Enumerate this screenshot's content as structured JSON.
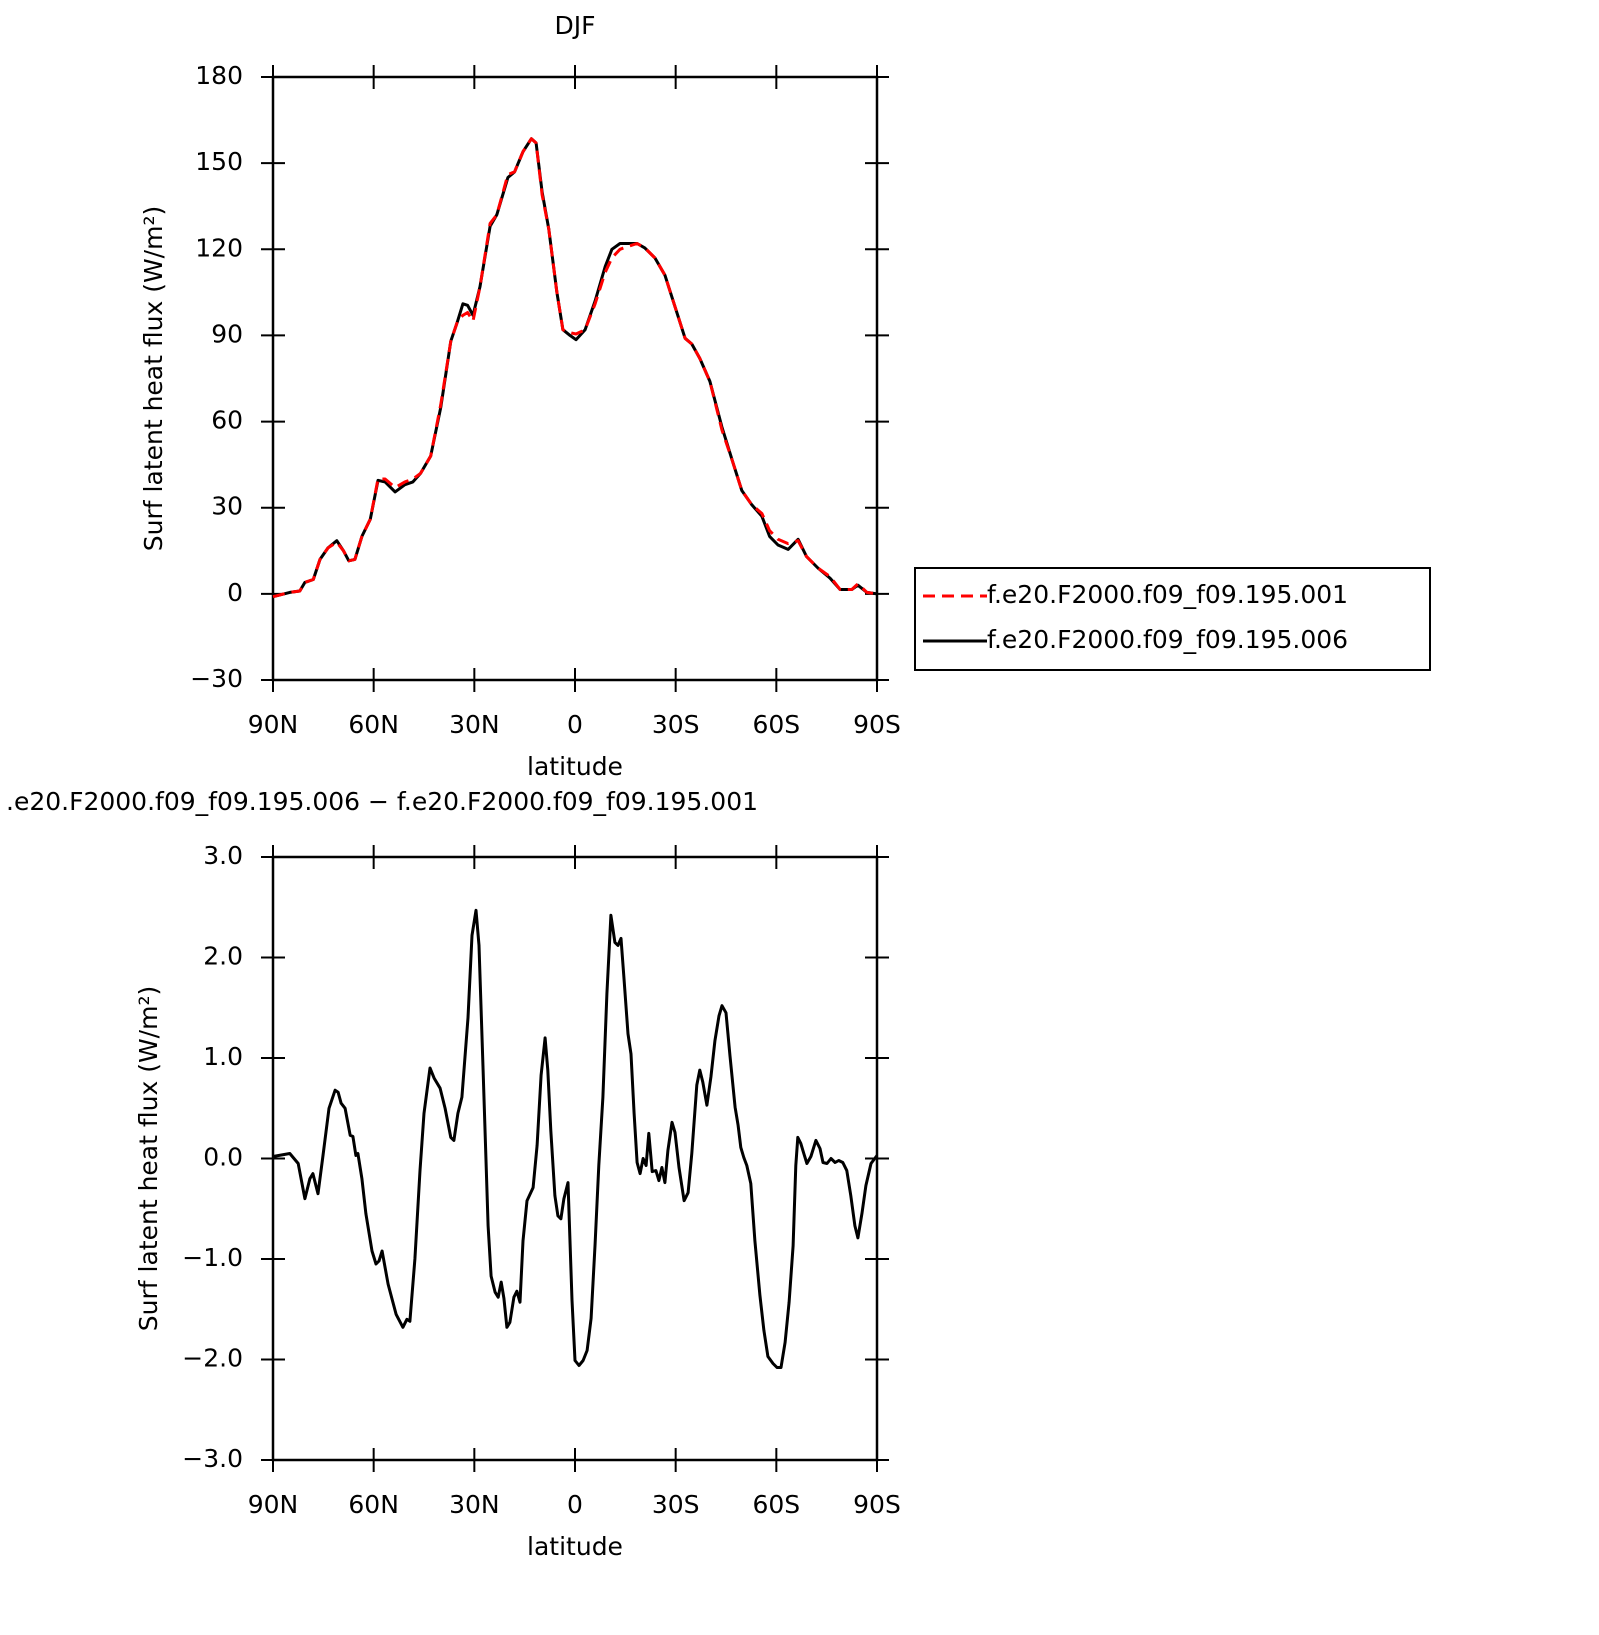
{
  "chart_data": [
    {
      "type": "line",
      "title": "DJF",
      "xlabel": "latitude",
      "ylabel": "Surf latent heat flux (W/m²)",
      "x": [
        90,
        85,
        82,
        80.5,
        78,
        76,
        73.6,
        71,
        69,
        67.4,
        65.6,
        63.5,
        61,
        58.7,
        56.6,
        53.6,
        50.7,
        48.3,
        46,
        43,
        40,
        37,
        35,
        33.4,
        32,
        30.4,
        28.3,
        25.3,
        23.3,
        20,
        18,
        15.5,
        13,
        11.6,
        9.8,
        7.8,
        5.4,
        3.6,
        1.5,
        -0.3,
        -3,
        -6,
        -9,
        -11,
        -13.4,
        -15.8,
        -18.5,
        -20.8,
        -23.8,
        -26.8,
        -29.8,
        -32.8,
        -34.8,
        -37.2,
        -40.2,
        -43.8,
        -47,
        -49.7,
        -52.7,
        -55.7,
        -58,
        -60.5,
        -63.5,
        -66.5,
        -69,
        -72.4,
        -76,
        -79,
        -82.5,
        -84.3,
        -87,
        -90
      ],
      "series": [
        {
          "name": "f.e20.F2000.f09_f09.195.006",
          "color": "#000000",
          "line_style": "solid",
          "values": [
            -1,
            0.5,
            1,
            4,
            5,
            12,
            16,
            18.5,
            15,
            11.5,
            12,
            20,
            26,
            39.5,
            39,
            35.5,
            38,
            39,
            42,
            48,
            65,
            88,
            95,
            101,
            100.5,
            97,
            107,
            128,
            132,
            145,
            147,
            154,
            158.5,
            157,
            140,
            127,
            105,
            92,
            90,
            88.5,
            92,
            102,
            114,
            120,
            122,
            122,
            122,
            120.5,
            117,
            111,
            100,
            89,
            87,
            82,
            74,
            58,
            46,
            36,
            31,
            27,
            20,
            17,
            15.5,
            19,
            13,
            9,
            5.5,
            1.5,
            1.5,
            3,
            0.5,
            0
          ]
        },
        {
          "name": "f.e20.F2000.f09_f09.195.001",
          "color": "#ff0000",
          "line_style": "dashed",
          "values": [
            -1,
            0.5,
            1,
            4,
            5,
            12,
            16,
            18,
            15,
            11.5,
            12,
            20,
            26,
            40,
            40,
            37,
            39,
            40,
            42,
            48,
            66,
            88,
            95,
            97,
            98,
            95,
            107,
            129,
            132,
            146,
            147,
            154,
            158.5,
            157,
            139,
            127,
            105,
            92,
            91,
            90.5,
            92,
            101,
            112,
            117,
            120,
            121,
            122,
            120.5,
            117,
            111,
            100,
            89,
            87,
            82,
            74,
            57,
            46,
            36,
            31,
            28,
            22,
            19,
            17.5,
            18.5,
            13,
            9,
            6,
            1.5,
            1.5,
            3.5,
            0.5,
            0
          ]
        }
      ],
      "legend_order": [
        1,
        0
      ],
      "legend": "right",
      "xlim": [
        90,
        -90
      ],
      "xticks": [
        {
          "value": 90,
          "label": "90N"
        },
        {
          "value": 60,
          "label": "60N"
        },
        {
          "value": 30,
          "label": "30N"
        },
        0,
        {
          "value": -30,
          "label": "30S"
        },
        {
          "value": -60,
          "label": "60S"
        },
        {
          "value": -90,
          "label": "90S"
        }
      ],
      "ylim": [
        -30,
        180
      ],
      "yticks": [
        {
          "value": -30,
          "label": "−30"
        },
        0,
        30,
        60,
        90,
        120,
        150,
        180
      ]
    },
    {
      "type": "line",
      "title": ".e20.F2000.f09_f09.195.006 − f.e20.F2000.f09_f09.195.001",
      "xlabel": "latitude",
      "ylabel": "Surf latent heat flux (W/m²)",
      "x": [
        90,
        85,
        82.5,
        80.5,
        79,
        78.1,
        76.6,
        75.1,
        73.3,
        71.5,
        70.6,
        69.7,
        68.5,
        67,
        66.2,
        65.3,
        64.7,
        63.5,
        62.3,
        60.5,
        59.3,
        58.4,
        57.5,
        55.7,
        54.5,
        53.3,
        51.3,
        50.1,
        49.2,
        47.7,
        46.2,
        45,
        43.2,
        42,
        40.2,
        38.7,
        37,
        36.1,
        34.9,
        33.7,
        31.9,
        30.7,
        29.5,
        28.6,
        27.4,
        25.9,
        25,
        23.8,
        22.9,
        22,
        21.2,
        20.3,
        19.4,
        18.2,
        17.3,
        16.4,
        15.5,
        14.3,
        12.5,
        11.3,
        10.1,
        8.9,
        8.1,
        7.2,
        6,
        5.1,
        4.2,
        3.3,
        2.1,
        0.9,
        0,
        -1.2,
        -2.4,
        -3.6,
        -4.8,
        -6,
        -7.1,
        -8.3,
        -9.5,
        -10.7,
        -11.9,
        -12.8,
        -13.7,
        -14.6,
        -15.8,
        -16.7,
        -17.6,
        -18.5,
        -19.4,
        -20.3,
        -21.2,
        -22,
        -23,
        -24.1,
        -25,
        -25.9,
        -26.8,
        -27.7,
        -28.9,
        -29.8,
        -31,
        -32.5,
        -33.7,
        -34.8,
        -36.3,
        -37.2,
        -38.1,
        -39.3,
        -40.5,
        -41.7,
        -42.9,
        -43.8,
        -45,
        -46.2,
        -47.7,
        -48.6,
        -49.4,
        -50.3,
        -51.2,
        -52.4,
        -53.6,
        -55.1,
        -56.3,
        -57.5,
        -59,
        -60.2,
        -61.4,
        -62.6,
        -63.8,
        -65,
        -65.8,
        -66.4,
        -67.3,
        -68.2,
        -69.1,
        -70.3,
        -71.8,
        -73,
        -73.9,
        -75.1,
        -76.3,
        -77.5,
        -78.6,
        -79.8,
        -81,
        -82.2,
        -83.4,
        -84.3,
        -85.5,
        -86.7,
        -88.2,
        -90
      ],
      "values": [
        0.02,
        0.05,
        -0.05,
        -0.4,
        -0.2,
        -0.15,
        -0.35,
        0.03,
        0.5,
        0.68,
        0.66,
        0.55,
        0.5,
        0.23,
        0.22,
        0.03,
        0.05,
        -0.2,
        -0.55,
        -0.92,
        -1.05,
        -1.02,
        -0.92,
        -1.25,
        -1.4,
        -1.55,
        -1.68,
        -1.6,
        -1.62,
        -1.0,
        -0.12,
        0.45,
        0.9,
        0.8,
        0.7,
        0.5,
        0.21,
        0.18,
        0.45,
        0.61,
        1.4,
        2.22,
        2.47,
        2.12,
        0.88,
        -0.67,
        -1.17,
        -1.33,
        -1.38,
        -1.23,
        -1.39,
        -1.68,
        -1.63,
        -1.38,
        -1.32,
        -1.43,
        -0.82,
        -0.42,
        -0.29,
        0.13,
        0.83,
        1.2,
        0.88,
        0.28,
        -0.37,
        -0.57,
        -0.6,
        -0.4,
        -0.24,
        -1.41,
        -2.01,
        -2.06,
        -2.01,
        -1.91,
        -1.59,
        -0.85,
        -0.07,
        0.61,
        1.64,
        2.42,
        2.15,
        2.12,
        2.19,
        1.79,
        1.24,
        1.04,
        0.45,
        -0.04,
        -0.15,
        0,
        -0.07,
        0.25,
        -0.13,
        -0.12,
        -0.22,
        -0.09,
        -0.24,
        0.08,
        0.36,
        0.26,
        -0.09,
        -0.42,
        -0.34,
        0.05,
        0.73,
        0.88,
        0.76,
        0.53,
        0.81,
        1.17,
        1.42,
        1.52,
        1.45,
        1.02,
        0.51,
        0.33,
        0.11,
        0.01,
        -0.07,
        -0.25,
        -0.82,
        -1.36,
        -1.71,
        -1.97,
        -2.04,
        -2.08,
        -2.08,
        -1.83,
        -1.43,
        -0.87,
        -0.07,
        0.21,
        0.15,
        0.05,
        -0.05,
        0.02,
        0.18,
        0.1,
        -0.04,
        -0.05,
        0,
        -0.04,
        -0.02,
        -0.04,
        -0.12,
        -0.37,
        -0.67,
        -0.79,
        -0.55,
        -0.27,
        -0.05,
        0.03
      ],
      "color": "#000000",
      "line_style": "solid",
      "xlim": [
        90,
        -90
      ],
      "xticks": [
        {
          "value": 90,
          "label": "90N"
        },
        {
          "value": 60,
          "label": "60N"
        },
        {
          "value": 30,
          "label": "30N"
        },
        0,
        {
          "value": -30,
          "label": "30S"
        },
        {
          "value": -60,
          "label": "60S"
        },
        {
          "value": -90,
          "label": "90S"
        }
      ],
      "ylim": [
        -3,
        3
      ],
      "yticks": [
        {
          "value": -3,
          "label": "−3.0"
        },
        {
          "value": -2,
          "label": "−2.0"
        },
        {
          "value": -1,
          "label": "−1.0"
        },
        {
          "value": 0,
          "label": "0.0"
        },
        {
          "value": 1,
          "label": "1.0"
        },
        {
          "value": 2,
          "label": "2.0"
        },
        {
          "value": 3,
          "label": "3.0"
        }
      ]
    }
  ]
}
